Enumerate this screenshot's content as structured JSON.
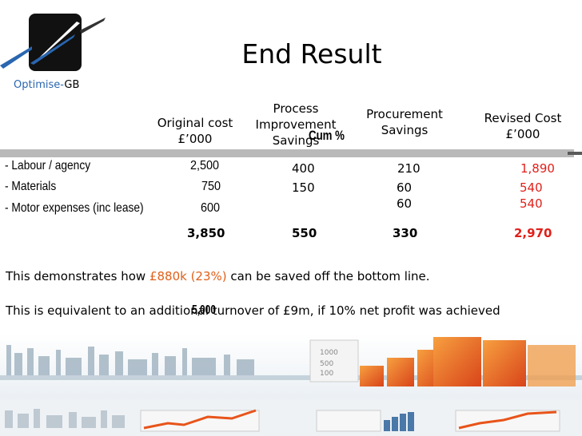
{
  "brand": {
    "name_part1": "Optimise-",
    "name_part2": "GB"
  },
  "title": "End Result",
  "columns": {
    "original": [
      "Original cost",
      "£’000"
    ],
    "process": [
      "Process",
      "Improvement",
      "Savings"
    ],
    "procurement": [
      "Procurement",
      "Savings"
    ],
    "revised": [
      "Revised Cost",
      "£’000"
    ]
  },
  "overlay": {
    "cum": "Cum %",
    "five_k": "5,000"
  },
  "rows": [
    {
      "label": "- Labour / agency",
      "original": "2,500",
      "process": "400",
      "procurement": "210",
      "revised": "1,890"
    },
    {
      "label": "- Materials",
      "original": "750",
      "process": "150",
      "procurement": "60",
      "revised": "540"
    },
    {
      "label": "- Motor expenses (inc lease)",
      "original": "600",
      "process": "",
      "procurement": "60",
      "revised": "540"
    }
  ],
  "totals": {
    "original": "3,850",
    "process": "550",
    "procurement": "330",
    "revised": "2,970"
  },
  "para1": {
    "before": "This demonstrates how ",
    "highlight": "£880k (23%)",
    "after": " can be saved off the bottom line."
  },
  "para2": "This is equivalent to an additional turnover of £9m, if 10% net profit was achieved",
  "chart_labels": [
    "1000",
    "500",
    "100"
  ],
  "colors": {
    "accent_red": "#e0201a",
    "highlight_orange": "#e0601a",
    "brand_blue": "#2a66b0"
  }
}
